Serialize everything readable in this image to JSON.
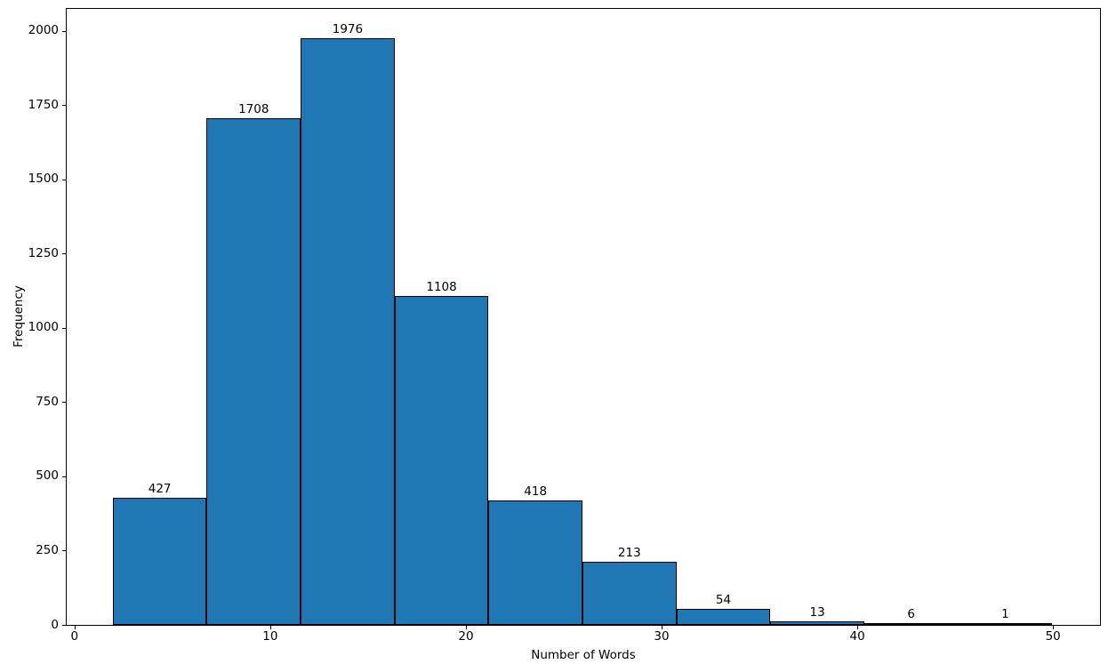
{
  "chart_data": {
    "type": "bar",
    "subtype": "histogram",
    "title": "",
    "xlabel": "Number of Words",
    "ylabel": "Frequency",
    "bin_edges": [
      2,
      6.8,
      11.6,
      16.4,
      21.2,
      26.0,
      30.8,
      35.6,
      40.4,
      45.2,
      50.0
    ],
    "values": [
      427,
      1708,
      1976,
      1108,
      418,
      213,
      54,
      13,
      6,
      1
    ],
    "xticks": [
      0,
      10,
      20,
      30,
      40,
      50
    ],
    "yticks": [
      0,
      250,
      500,
      750,
      1000,
      1250,
      1500,
      1750,
      2000
    ],
    "xlim": [
      -0.4,
      52.4
    ],
    "ylim": [
      0,
      2074.8
    ],
    "grid": false,
    "legend": null,
    "bar_color": "#1f77b4",
    "bar_edge_color": "#000000",
    "spine_color": "#000000",
    "text_color": "#000000",
    "background_color": "#ffffff"
  }
}
